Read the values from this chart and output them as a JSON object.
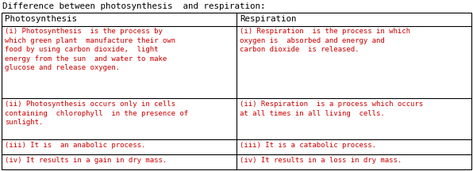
{
  "title": "Difference between photosynthesis  and respiration:",
  "title_color": "#000000",
  "header_left": "Photosynthesis",
  "header_right": "Respiration",
  "header_color": "#000000",
  "row_text_color": "#cc0000",
  "bg_color": "#ffffff",
  "border_color": "#000000",
  "col_split": 0.5,
  "rows": [
    {
      "left": "(i) Photosynthesis  is the process by\nwhich green plant  manufacture their own\nfood by using carbon dioxide,  light\nenergy from the sun  and water to make\nglucose and release oxygen.",
      "right": "(i) Respiration  is the process in which\noxygen is  absorbed and energy and\ncarbon dioxide  is released."
    },
    {
      "left": "(ii) Photosynthesis occurs only in cells\ncontaining  chlorophyll  in the presence of\nsunlight.",
      "right": "(ii) Respiration  is a process which occurs\nat all times in all living  cells."
    },
    {
      "left": "(iii) It is  an anabolic process.",
      "right": "(iii) It is a catabolic process."
    },
    {
      "left": "(iv) It results in a gain in dry mass.",
      "right": "(iv) It results in a loss in dry mass."
    }
  ],
  "font_size": 6.5,
  "title_font_size": 7.8,
  "header_font_size": 7.8,
  "fig_width": 5.96,
  "fig_height": 2.16,
  "dpi": 100
}
